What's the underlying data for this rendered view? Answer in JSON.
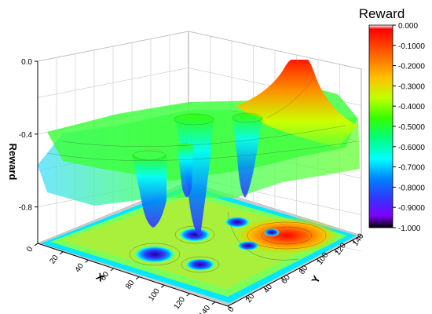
{
  "chart_data": {
    "type": "3d-surface",
    "title": "",
    "xlabel": "X",
    "ylabel": "Y",
    "zlabel": "Reward",
    "xlim": [
      0,
      150
    ],
    "ylim": [
      0,
      150
    ],
    "zlim": [
      -1.0,
      0.0
    ],
    "x_ticks": [
      "0",
      "20",
      "40",
      "60",
      "80",
      "100",
      "120",
      "140"
    ],
    "y_ticks": [
      "0",
      "20",
      "40",
      "60",
      "80",
      "100",
      "120",
      "140"
    ],
    "z_ticks": [
      "0.0",
      "-0.4",
      "-0.8"
    ],
    "grid": true,
    "projected_contour_map": true,
    "surface": {
      "base_level": -0.42,
      "peaks": [
        {
          "x": 115,
          "y": 120,
          "z": 0.0
        }
      ],
      "wells": [
        {
          "x": 55,
          "y": 50,
          "z": -0.97
        },
        {
          "x": 45,
          "y": 90,
          "z": -0.93
        },
        {
          "x": 25,
          "y": 100,
          "z": -0.9
        },
        {
          "x": 70,
          "y": 110,
          "z": -0.87
        },
        {
          "x": 100,
          "y": 95,
          "z": -0.88
        }
      ]
    },
    "colorbar": {
      "title": "Reward",
      "ticks": [
        "0.000",
        "-0.1000",
        "-0.2000",
        "-0.3000",
        "-0.4000",
        "-0.5000",
        "-0.6000",
        "-0.7000",
        "-0.8000",
        "-0.9000",
        "-1.000"
      ],
      "colors": [
        "#ffffff",
        "#ff0000",
        "#ff8000",
        "#ffcc00",
        "#ccff00",
        "#33ff00",
        "#00ff80",
        "#00ffff",
        "#0080ff",
        "#3333ff",
        "#8000ff",
        "#000000"
      ]
    }
  }
}
